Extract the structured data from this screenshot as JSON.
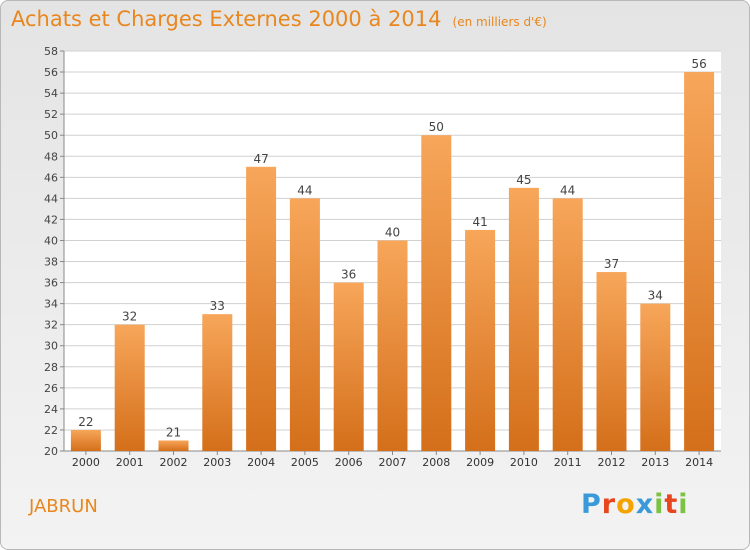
{
  "title": "Achats et Charges Externes 2000 à 2014",
  "unit": "(en milliers d'€)",
  "place": "JABRUN",
  "logo": {
    "text": "Proxiti",
    "letter_colors": [
      "#3a9ad9",
      "#e8471e",
      "#f4a300",
      "#3a9ad9",
      "#7cc243",
      "#e8471e",
      "#7cc243"
    ]
  },
  "colors": {
    "accent": "#e8871e",
    "bar_top": "#f7a65a",
    "bar_bottom": "#d46f1a",
    "grid": "#d0d0d0"
  },
  "chart_data": {
    "type": "bar",
    "title": "Achats et Charges Externes 2000 à 2014",
    "xlabel": "",
    "ylabel": "",
    "categories": [
      "2000",
      "2001",
      "2002",
      "2003",
      "2004",
      "2005",
      "2006",
      "2007",
      "2008",
      "2009",
      "2010",
      "2011",
      "2012",
      "2013",
      "2014"
    ],
    "values": [
      22,
      32,
      21,
      33,
      47,
      44,
      36,
      40,
      50,
      41,
      45,
      44,
      37,
      34,
      56
    ],
    "ylim": [
      20,
      58
    ],
    "ytick_step": 2,
    "grid": true,
    "data_labels": true
  }
}
